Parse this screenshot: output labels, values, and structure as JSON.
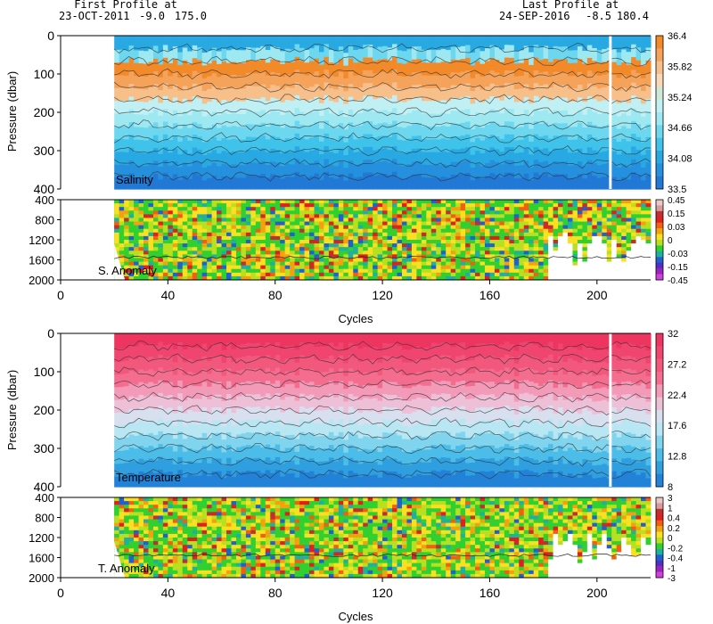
{
  "header": {
    "first_label": "First Profile at",
    "first_date": "23-OCT-2011",
    "first_lat": "-9.0",
    "first_lon": "175.0",
    "last_label": "Last Profile at",
    "last_date": "24-SEP-2016",
    "last_lat": "-8.5",
    "last_lon": "180.4"
  },
  "chart_data": [
    {
      "type": "heatmap",
      "panel_label": "Salinity",
      "ylabel": "Pressure (dbar)",
      "xlim": [
        0,
        220
      ],
      "ylim": [
        400,
        0
      ],
      "y_ticks": [
        0,
        100,
        200,
        300,
        400
      ],
      "data_x_range": [
        20,
        220
      ],
      "gap_at_cycle": 205,
      "colorbar_labels": [
        "36.4",
        "35.82",
        "35.24",
        "34.66",
        "34.08",
        "33.5"
      ],
      "colorbar_colors": [
        "#f28a2a",
        "#f5a35a",
        "#f7bf8a",
        "#f9d8b8",
        "#cfe8d6",
        "#c0f0f4",
        "#9ee8f2",
        "#6cd7ee",
        "#3fc3ea",
        "#29a9e3",
        "#2590dd",
        "#2178d5"
      ]
    },
    {
      "type": "heatmap",
      "panel_label": "S. Anomaly",
      "xlim": [
        0,
        220
      ],
      "ylim": [
        2000,
        400
      ],
      "y_ticks": [
        400,
        800,
        1200,
        1600,
        2000
      ],
      "colorbar_labels": [
        "0.45",
        "0.15",
        "0.03",
        "0",
        "-0.03",
        "-0.15",
        "-0.45"
      ],
      "colorbar_colors": [
        "#e8c8c8",
        "#d89a9a",
        "#c03030",
        "#e02020",
        "#f06010",
        "#f4a010",
        "#fae020",
        "#b8e020",
        "#30d030",
        "#20b0a0",
        "#2060d0",
        "#5030c0",
        "#a020c0",
        "#d040e0"
      ]
    },
    {
      "type": "heatmap",
      "panel_label": "Temperature",
      "ylabel": "Pressure (dbar)",
      "xlim": [
        0,
        220
      ],
      "ylim": [
        400,
        0
      ],
      "y_ticks": [
        0,
        100,
        200,
        300,
        400
      ],
      "gap_at_cycle": 205,
      "colorbar_labels": [
        "32",
        "27.2",
        "22.4",
        "17.6",
        "12.8",
        "8"
      ],
      "colorbar_colors": [
        "#ee3560",
        "#f0456e",
        "#f2577c",
        "#f46c8e",
        "#f39ab8",
        "#eec0d8",
        "#d8e0f0",
        "#b8e6f2",
        "#80d4ee",
        "#4cbde8",
        "#2f9fe0",
        "#2282d8"
      ]
    },
    {
      "type": "heatmap",
      "panel_label": "T. Anomaly",
      "xlabel": "Cycles",
      "xlim": [
        0,
        220
      ],
      "ylim": [
        2000,
        400
      ],
      "y_ticks": [
        400,
        800,
        1200,
        1600,
        2000
      ],
      "x_ticks": [
        0,
        40,
        80,
        120,
        160,
        200
      ],
      "colorbar_labels": [
        "3",
        "1",
        "0.4",
        "0.2",
        "0",
        "-0.2",
        "-0.4",
        "-1",
        "-3"
      ],
      "colorbar_colors": [
        "#e8c8c8",
        "#d89a9a",
        "#c03030",
        "#e02020",
        "#f06010",
        "#f4a010",
        "#fae020",
        "#b8e020",
        "#30d030",
        "#20b0a0",
        "#2060d0",
        "#5030c0",
        "#a020c0",
        "#d040e0"
      ]
    }
  ],
  "axes": {
    "x_tick_labels": [
      "0",
      "40",
      "80",
      "120",
      "160",
      "200"
    ],
    "xlabel_top": "Cycles",
    "xlabel_bottom": "Cycles"
  }
}
